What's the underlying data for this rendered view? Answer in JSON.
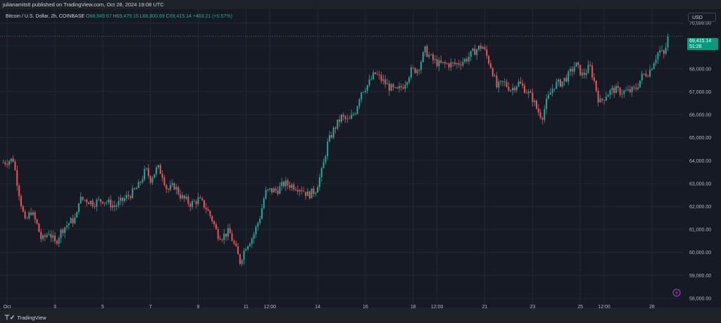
{
  "header": {
    "published_line": "julianamits6 published on TradingView.com, Oct 28, 2024 19:08 UTC"
  },
  "legend": {
    "symbol": "Bitcoin / U.S. Dollar, 2h, COINBASE",
    "open_label": "O",
    "open": "68,949.67",
    "high_label": "H",
    "high": "69,479.15",
    "low_label": "L",
    "low": "68,800.69",
    "close_label": "C",
    "close": "69,415.14",
    "change": "+463.21 (+0.67%)"
  },
  "currency_button": "USD",
  "price_tag": {
    "price": "69,415.14",
    "countdown": "51:26"
  },
  "footer": {
    "brand": "TradingView"
  },
  "colors": {
    "up": "#26a69a",
    "down": "#ef5350",
    "background": "#161a25",
    "grid": "#242833"
  },
  "icons": {
    "brand_logo": "tradingview-logo-icon",
    "alert": "flash-icon"
  },
  "chart_data": {
    "type": "candlestick",
    "title": "Bitcoin / U.S. Dollar, 2h, COINBASE",
    "ylim": [
      57600,
      70600
    ],
    "y_ticks": [
      {
        "value": 58000,
        "label": "58,000.00"
      },
      {
        "value": 59000,
        "label": "59,000.00"
      },
      {
        "value": 60000,
        "label": "60,000.00"
      },
      {
        "value": 61000,
        "label": "61,000.00"
      },
      {
        "value": 62000,
        "label": "62,000.00"
      },
      {
        "value": 63000,
        "label": "63,000.00"
      },
      {
        "value": 64000,
        "label": "64,000.00"
      },
      {
        "value": 65000,
        "label": "65,000.00"
      },
      {
        "value": 66000,
        "label": "66,000.00"
      },
      {
        "value": 67000,
        "label": "67,000.00"
      },
      {
        "value": 68000,
        "label": "68,000.00"
      },
      {
        "value": 69000,
        "label": "69,000.00"
      },
      {
        "value": 70000,
        "label": "70,000.00"
      }
    ],
    "x_ticks": [
      {
        "day": 1,
        "label": "Oct"
      },
      {
        "day": 3,
        "label": "3"
      },
      {
        "day": 5,
        "label": "5"
      },
      {
        "day": 7,
        "label": "7"
      },
      {
        "day": 9,
        "label": "9"
      },
      {
        "day": 11,
        "label": "11"
      },
      {
        "day": 12,
        "label": "12:00"
      },
      {
        "day": 14,
        "label": "14"
      },
      {
        "day": 16,
        "label": "16"
      },
      {
        "day": 18,
        "label": "18"
      },
      {
        "day": 19,
        "label": "12:00"
      },
      {
        "day": 21,
        "label": "21"
      },
      {
        "day": 23,
        "label": "23"
      },
      {
        "day": 25,
        "label": "25"
      },
      {
        "day": 26,
        "label": "12:00"
      },
      {
        "day": 28,
        "label": "28"
      }
    ],
    "x_range_days": [
      0.7,
      29.3
    ],
    "last_price": 69415.14,
    "close_path": [
      {
        "day": 0.75,
        "close": 63900
      },
      {
        "day": 1.25,
        "close": 64050
      },
      {
        "day": 1.55,
        "close": 62300
      },
      {
        "day": 1.75,
        "close": 61300
      },
      {
        "day": 2.0,
        "close": 61800
      },
      {
        "day": 2.25,
        "close": 61200
      },
      {
        "day": 2.45,
        "close": 60500
      },
      {
        "day": 2.75,
        "close": 60900
      },
      {
        "day": 3.0,
        "close": 60400
      },
      {
        "day": 3.3,
        "close": 61000
      },
      {
        "day": 3.6,
        "close": 61300
      },
      {
        "day": 3.9,
        "close": 61500
      },
      {
        "day": 4.0,
        "close": 62300
      },
      {
        "day": 4.3,
        "close": 62300
      },
      {
        "day": 4.6,
        "close": 62150
      },
      {
        "day": 5.0,
        "close": 62300
      },
      {
        "day": 5.5,
        "close": 62000
      },
      {
        "day": 6.0,
        "close": 62400
      },
      {
        "day": 6.3,
        "close": 62650
      },
      {
        "day": 6.5,
        "close": 62900
      },
      {
        "day": 6.8,
        "close": 63600
      },
      {
        "day": 7.0,
        "close": 63200
      },
      {
        "day": 7.3,
        "close": 63700
      },
      {
        "day": 7.5,
        "close": 63400
      },
      {
        "day": 7.7,
        "close": 62700
      },
      {
        "day": 8.0,
        "close": 62900
      },
      {
        "day": 8.3,
        "close": 62400
      },
      {
        "day": 8.7,
        "close": 62100
      },
      {
        "day": 9.0,
        "close": 62300
      },
      {
        "day": 9.3,
        "close": 62000
      },
      {
        "day": 9.6,
        "close": 61400
      },
      {
        "day": 9.8,
        "close": 60800
      },
      {
        "day": 10.0,
        "close": 60700
      },
      {
        "day": 10.3,
        "close": 60900
      },
      {
        "day": 10.55,
        "close": 60200
      },
      {
        "day": 10.75,
        "close": 59600
      },
      {
        "day": 11.0,
        "close": 60300
      },
      {
        "day": 11.3,
        "close": 60700
      },
      {
        "day": 11.6,
        "close": 61600
      },
      {
        "day": 11.8,
        "close": 62600
      },
      {
        "day": 12.0,
        "close": 62700
      },
      {
        "day": 12.3,
        "close": 62700
      },
      {
        "day": 12.6,
        "close": 63000
      },
      {
        "day": 13.0,
        "close": 62900
      },
      {
        "day": 13.3,
        "close": 62800
      },
      {
        "day": 13.6,
        "close": 62500
      },
      {
        "day": 13.9,
        "close": 62700
      },
      {
        "day": 14.2,
        "close": 63600
      },
      {
        "day": 14.4,
        "close": 64700
      },
      {
        "day": 14.7,
        "close": 65400
      },
      {
        "day": 15.0,
        "close": 65900
      },
      {
        "day": 15.3,
        "close": 65700
      },
      {
        "day": 15.6,
        "close": 66200
      },
      {
        "day": 15.8,
        "close": 67000
      },
      {
        "day": 16.1,
        "close": 67300
      },
      {
        "day": 16.4,
        "close": 67800
      },
      {
        "day": 16.7,
        "close": 67500
      },
      {
        "day": 17.0,
        "close": 67200
      },
      {
        "day": 17.3,
        "close": 67000
      },
      {
        "day": 17.6,
        "close": 67300
      },
      {
        "day": 17.9,
        "close": 67900
      },
      {
        "day": 18.2,
        "close": 68000
      },
      {
        "day": 18.5,
        "close": 68800
      },
      {
        "day": 18.8,
        "close": 68400
      },
      {
        "day": 19.1,
        "close": 68200
      },
      {
        "day": 19.4,
        "close": 68200
      },
      {
        "day": 19.8,
        "close": 68200
      },
      {
        "day": 20.2,
        "close": 68400
      },
      {
        "day": 20.6,
        "close": 68800
      },
      {
        "day": 20.9,
        "close": 69000
      },
      {
        "day": 21.1,
        "close": 68500
      },
      {
        "day": 21.3,
        "close": 68000
      },
      {
        "day": 21.5,
        "close": 67200
      },
      {
        "day": 21.8,
        "close": 67400
      },
      {
        "day": 22.1,
        "close": 67100
      },
      {
        "day": 22.4,
        "close": 67400
      },
      {
        "day": 22.7,
        "close": 67100
      },
      {
        "day": 23.0,
        "close": 66700
      },
      {
        "day": 23.2,
        "close": 66200
      },
      {
        "day": 23.4,
        "close": 65900
      },
      {
        "day": 23.6,
        "close": 66600
      },
      {
        "day": 23.9,
        "close": 67300
      },
      {
        "day": 24.2,
        "close": 67400
      },
      {
        "day": 24.5,
        "close": 67700
      },
      {
        "day": 24.8,
        "close": 68200
      },
      {
        "day": 25.1,
        "close": 67700
      },
      {
        "day": 25.4,
        "close": 68100
      },
      {
        "day": 25.6,
        "close": 67400
      },
      {
        "day": 25.8,
        "close": 66500
      },
      {
        "day": 26.1,
        "close": 66900
      },
      {
        "day": 26.4,
        "close": 67100
      },
      {
        "day": 26.7,
        "close": 67000
      },
      {
        "day": 27.0,
        "close": 67000
      },
      {
        "day": 27.3,
        "close": 67100
      },
      {
        "day": 27.6,
        "close": 67700
      },
      {
        "day": 27.9,
        "close": 67900
      },
      {
        "day": 28.1,
        "close": 68400
      },
      {
        "day": 28.3,
        "close": 68800
      },
      {
        "day": 28.5,
        "close": 68600
      },
      {
        "day": 28.7,
        "close": 69415
      }
    ]
  }
}
